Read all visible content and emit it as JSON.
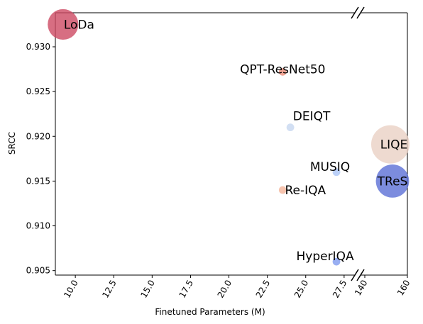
{
  "chart_data": {
    "type": "scatter",
    "title": "",
    "xlabel": "Finetuned Parameters (M)",
    "ylabel": "SRCC",
    "ylim": [
      0.9045,
      0.9338
    ],
    "x_axis": {
      "broken": true,
      "left_segment": {
        "range": [
          8.7,
          28.2
        ],
        "ticks": [
          10.0,
          12.5,
          15.0,
          17.5,
          20.0,
          22.5,
          25.0,
          27.5
        ],
        "tick_labels": [
          "10.0",
          "12.5",
          "15.0",
          "17.5",
          "20.0",
          "22.5",
          "25.0",
          "27.5"
        ]
      },
      "right_segment": {
        "range": [
          138,
          160
        ],
        "ticks": [
          140,
          160
        ],
        "tick_labels": [
          "140",
          "160"
        ]
      },
      "tick_rotation_deg": 60
    },
    "y_ticks": [
      0.905,
      0.91,
      0.915,
      0.92,
      0.925,
      0.93
    ],
    "y_tick_labels": [
      "0.905",
      "0.910",
      "0.915",
      "0.920",
      "0.925",
      "0.930"
    ],
    "grid": false,
    "points": [
      {
        "label": "LoDa",
        "x": 9.2,
        "y": 0.9325,
        "size": 2.4,
        "color": "#cd4a63"
      },
      {
        "label": "QPT-ResNet50",
        "x": 23.5,
        "y": 0.9272,
        "size": 0.6,
        "color": "#ee8f7b"
      },
      {
        "label": "DEIQT",
        "x": 24.0,
        "y": 0.921,
        "size": 0.6,
        "color": "#c7d7f0"
      },
      {
        "label": "MUSIQ",
        "x": 27.0,
        "y": 0.916,
        "size": 0.6,
        "color": "#aac4f6"
      },
      {
        "label": "Re-IQA",
        "x": 23.5,
        "y": 0.914,
        "size": 0.6,
        "color": "#f4b49a"
      },
      {
        "label": "HyperIQA",
        "x": 27.0,
        "y": 0.906,
        "size": 0.6,
        "color": "#7f9bef"
      },
      {
        "label": "LIQE",
        "x": 152,
        "y": 0.9191,
        "size": 3.0,
        "color": "#ead1c4"
      },
      {
        "label": "TReS",
        "x": 153,
        "y": 0.915,
        "size": 2.6,
        "color": "#5b6fd6"
      }
    ]
  }
}
